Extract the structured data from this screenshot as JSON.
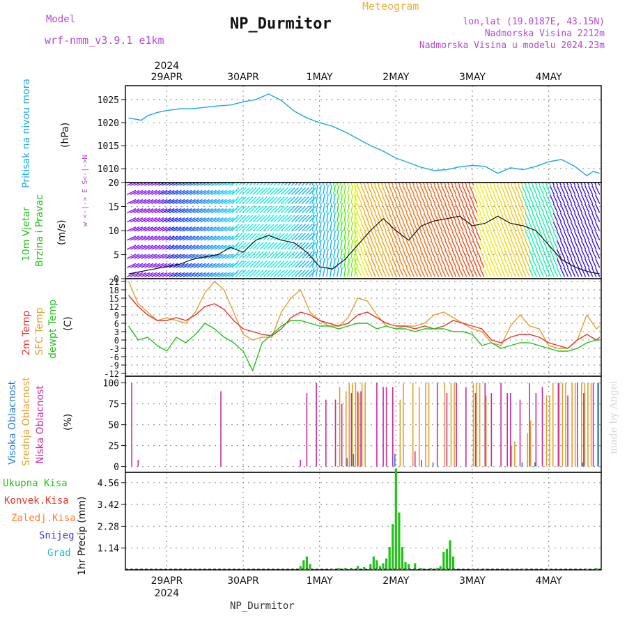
{
  "header": {
    "model_label": "Model",
    "model_name": "wrf-nmm_v3.9.1 e1km",
    "title": "NP_Durmitor",
    "meteogram_label": "Meteogram",
    "lonlat": "lon,lat (19.0187E, 43.15N)",
    "altitude": "Nadmorska Visina 2212m",
    "model_altitude": "Nadmorska Visina u modelu 2024.23m"
  },
  "footer": {
    "station": "NP_Durmitor",
    "credit": "made by Angel"
  },
  "time_axis": {
    "year": "2024",
    "day_labels": [
      "29APR",
      "30APR",
      "1MAY",
      "2MAY",
      "3MAY",
      "4MAY"
    ]
  },
  "colors": {
    "pressure": "#1aa8e6",
    "t2m": "#e8332a",
    "sfc": "#e0a030",
    "dewpt": "#22c21a",
    "cloud_high": "#2a7fd6",
    "cloud_mid": "#e0a030",
    "cloud_low": "#cc2aa0",
    "precip_total": "#22c21a",
    "precip_conv": "#e8332a",
    "precip_frz": "#ff7f2a",
    "snow": "#4040e0",
    "grad": "#20c0c0",
    "wind_label": "#22c21a",
    "purple_text": "#b04ad6",
    "header_orange": "#e8b040",
    "grid": "#9a9a9a"
  },
  "panels": {
    "pressure": {
      "labels": [
        "Pritisak na nivou mora",
        "(hPa)"
      ],
      "ticks": [
        "1010",
        "1015",
        "1020",
        "1025"
      ]
    },
    "wind": {
      "labels": [
        "10m Vjetar",
        "Brzina i Pravac",
        "(m/s)"
      ],
      "ticks": [
        "0",
        "5",
        "10",
        "15",
        "20"
      ],
      "compass": "w <-|-> E  S<-|->N"
    },
    "temp": {
      "labels": [
        "2m Temp",
        "SFC Temp",
        "dewpt Temp",
        "(C)"
      ],
      "ticks": [
        "-12",
        "-9",
        "-6",
        "-3",
        "0",
        "3",
        "6",
        "9",
        "12",
        "15",
        "18",
        "21"
      ]
    },
    "cloud": {
      "labels": [
        "Visoka Oblacnost",
        "Srednja Oblacnost",
        "Niska Oblacnost",
        "(%)"
      ],
      "ticks": [
        "0",
        "25",
        "50",
        "75",
        "100"
      ]
    },
    "precip": {
      "labels": [
        "Ukupna Kisa",
        "Konvek.Kisa",
        "Zaledj.Kisa",
        "Snijeg",
        "Grad"
      ],
      "ylabel": "1hr Precip (mm)",
      "ticks": [
        "1.14",
        "2.28",
        "3.42",
        "4.56"
      ]
    }
  },
  "chart_data": [
    {
      "type": "line",
      "title": "",
      "ylabel": "Pritisak na nivou mora (hPa)",
      "xlabel": "",
      "x_unit": "hours from 29APR 2024 00:00",
      "ylim": [
        1007,
        1028
      ],
      "series": [
        {
          "name": "Pritisak na nivou mora",
          "x": [
            -12,
            -8,
            -6,
            -3,
            0,
            4,
            8,
            12,
            16,
            20,
            24,
            28,
            32,
            36,
            40,
            44,
            48,
            52,
            56,
            60,
            64,
            68,
            72,
            76,
            80,
            84,
            88,
            92,
            96,
            100,
            104,
            108,
            112,
            116,
            120,
            124,
            128,
            132,
            134,
            136
          ],
          "values": [
            1021,
            1020.5,
            1021.5,
            1022.2,
            1022.6,
            1023,
            1023,
            1023.3,
            1023.6,
            1023.8,
            1024.5,
            1025,
            1026.2,
            1024.8,
            1022.5,
            1021,
            1020,
            1019.2,
            1018,
            1016.5,
            1015,
            1013.8,
            1012.3,
            1011.3,
            1010.3,
            1009.6,
            1009.8,
            1010.4,
            1010.7,
            1010.5,
            1009,
            1010.2,
            1009.8,
            1010.5,
            1011.5,
            1012,
            1010.6,
            1008.5,
            1009.4,
            1009
          ]
        }
      ]
    },
    {
      "type": "line",
      "title": "",
      "ylabel": "10m Vjetar Brzina i Pravac (m/s)",
      "xlabel": "",
      "x_unit": "hours from 29APR 2024 00:00",
      "ylim": [
        0,
        20
      ],
      "series": [
        {
          "name": "10m Vjetar",
          "x": [
            -12,
            -8,
            -4,
            0,
            4,
            8,
            12,
            16,
            20,
            24,
            28,
            32,
            36,
            40,
            44,
            48,
            52,
            56,
            60,
            64,
            68,
            72,
            76,
            80,
            84,
            88,
            92,
            96,
            100,
            104,
            108,
            112,
            116,
            120,
            124,
            128,
            132,
            136
          ],
          "values": [
            1,
            1.5,
            2,
            2.5,
            3,
            4,
            4.5,
            5,
            6.5,
            5.5,
            8,
            9,
            8,
            7.5,
            5.5,
            2.5,
            2,
            4,
            7,
            10,
            12.5,
            10,
            8,
            11,
            12,
            12.5,
            13,
            11,
            11.5,
            13,
            11.5,
            11,
            10,
            7,
            4,
            2.5,
            1.5,
            1
          ]
        }
      ]
    },
    {
      "type": "line",
      "title": "",
      "ylabel": "Temp (C)",
      "xlabel": "",
      "x_unit": "hours from 29APR 2024 00:00",
      "ylim": [
        -13,
        22
      ],
      "series": [
        {
          "name": "2m Temp",
          "x": [
            -12,
            -9,
            -6,
            -3,
            0,
            3,
            6,
            9,
            12,
            15,
            18,
            21,
            24,
            27,
            30,
            33,
            36,
            39,
            42,
            45,
            48,
            51,
            54,
            57,
            60,
            63,
            66,
            69,
            72,
            75,
            78,
            81,
            84,
            87,
            90,
            93,
            96,
            99,
            102,
            105,
            108,
            111,
            114,
            117,
            120,
            123,
            126,
            129,
            132,
            135,
            136
          ],
          "values": [
            16,
            12,
            9,
            7,
            7,
            8,
            7,
            9,
            12,
            13,
            11,
            7,
            4,
            3,
            2,
            1.5,
            4,
            8,
            10,
            9,
            7,
            6,
            5,
            6,
            9,
            10,
            8,
            6,
            5,
            5,
            4,
            5,
            4,
            5,
            7,
            6,
            5,
            4,
            0,
            -1,
            1,
            2,
            2,
            1,
            -1,
            -2,
            -3,
            0,
            2,
            0,
            1
          ]
        },
        {
          "name": "SFC Temp",
          "x": [
            -12,
            -9,
            -6,
            -3,
            0,
            3,
            6,
            9,
            12,
            15,
            18,
            21,
            24,
            27,
            30,
            33,
            36,
            39,
            42,
            45,
            48,
            51,
            54,
            57,
            60,
            63,
            66,
            69,
            72,
            75,
            78,
            81,
            84,
            87,
            90,
            93,
            96,
            99,
            102,
            105,
            108,
            111,
            114,
            117,
            120,
            123,
            126,
            129,
            132,
            135,
            136
          ],
          "values": [
            21,
            13,
            10,
            7,
            8,
            7,
            6,
            10,
            17,
            21,
            18,
            10,
            2,
            0,
            1,
            1,
            10,
            15,
            18,
            10,
            7,
            5,
            5,
            8,
            15,
            14,
            9,
            5,
            4,
            5,
            5,
            6,
            9,
            10,
            8,
            6,
            4,
            3,
            -1,
            -2,
            5,
            9,
            5,
            4,
            -2,
            -3,
            -3,
            0,
            9,
            4,
            5
          ]
        },
        {
          "name": "dewpt Temp",
          "x": [
            -12,
            -9,
            -6,
            -3,
            0,
            3,
            6,
            9,
            12,
            15,
            18,
            21,
            24,
            27,
            30,
            33,
            36,
            39,
            42,
            45,
            48,
            51,
            54,
            57,
            60,
            63,
            66,
            69,
            72,
            75,
            78,
            81,
            84,
            87,
            90,
            93,
            96,
            99,
            102,
            105,
            108,
            111,
            114,
            117,
            120,
            123,
            126,
            129,
            132,
            135,
            136
          ],
          "values": [
            5,
            0,
            1,
            -2,
            -4,
            1,
            -1,
            2,
            6,
            4,
            1,
            -1,
            -4,
            -11,
            -1,
            2,
            5,
            7,
            7,
            6,
            5,
            5,
            4,
            5,
            6,
            6,
            4,
            5,
            4,
            4,
            3,
            4,
            4,
            4,
            3,
            3,
            2,
            -2,
            -1,
            -3,
            -2,
            -1,
            -1,
            -2,
            -3,
            -4,
            -4,
            -3,
            -1,
            0,
            0
          ]
        }
      ]
    },
    {
      "type": "bar",
      "title": "",
      "ylabel": "Oblacnost (%)",
      "xlabel": "",
      "x_unit": "hours from 29APR 2024 00:00",
      "ylim": [
        0,
        100
      ],
      "series": [
        {
          "name": "Niska Oblacnost",
          "x": [
            -11,
            -9,
            17,
            42,
            44,
            47,
            50,
            53,
            55,
            58,
            60,
            61,
            66,
            68,
            69,
            71,
            78,
            80,
            85,
            88,
            91,
            94,
            97,
            100,
            102,
            105,
            107,
            108,
            111,
            114,
            116,
            118,
            123,
            126,
            129,
            131,
            134
          ],
          "values": [
            100,
            8,
            90,
            8,
            88,
            100,
            80,
            80,
            75,
            88,
            90,
            90,
            100,
            95,
            95,
            95,
            18,
            8,
            100,
            88,
            100,
            95,
            88,
            100,
            88,
            100,
            88,
            88,
            80,
            100,
            88,
            95,
            100,
            85,
            100,
            88,
            100
          ]
        },
        {
          "name": "Srednja Oblacnost",
          "x": [
            54,
            56,
            57,
            58,
            59,
            60,
            61,
            62,
            73,
            74,
            77,
            79,
            81,
            82,
            87,
            89,
            90,
            96,
            97,
            98,
            100,
            108,
            109,
            113,
            114,
            119,
            120,
            121,
            123,
            124,
            125,
            127,
            128,
            130,
            131,
            132,
            133,
            135
          ],
          "values": [
            95,
            90,
            100,
            100,
            100,
            88,
            100,
            100,
            80,
            100,
            100,
            95,
            100,
            100,
            100,
            100,
            100,
            100,
            100,
            100,
            85,
            25,
            30,
            40,
            55,
            85,
            85,
            100,
            100,
            100,
            100,
            100,
            100,
            100,
            100,
            100,
            100,
            100
          ]
        },
        {
          "name": "Visoka Oblacnost",
          "x": [
            56,
            58,
            71,
            83,
            111,
            115,
            130,
            135
          ],
          "values": [
            10,
            15,
            15,
            5,
            5,
            5,
            5,
            100
          ]
        }
      ]
    },
    {
      "type": "bar",
      "title": "",
      "ylabel": "1hr Precip (mm)",
      "xlabel": "",
      "x_unit": "hours from 29APR 2024 00:00",
      "ylim": [
        0,
        5.1
      ],
      "series": [
        {
          "name": "Ukupna Kisa",
          "x": [
            42,
            43,
            44,
            45,
            52,
            54,
            56,
            58,
            60,
            62,
            64,
            65,
            66,
            67,
            68,
            69,
            70,
            71,
            72,
            73,
            74,
            75,
            76,
            78,
            80,
            83,
            85,
            86,
            87,
            88,
            89,
            90,
            96,
            98,
            100,
            108,
            112,
            120,
            132,
            135
          ],
          "values": [
            0.2,
            0.5,
            0.7,
            0.3,
            0.05,
            0.1,
            0.1,
            0.1,
            0.2,
            0.15,
            0.3,
            0.7,
            0.5,
            0.2,
            0.35,
            0.6,
            1.2,
            2.4,
            5.3,
            3.0,
            1.2,
            0.4,
            0.3,
            0.35,
            0.1,
            0.1,
            0.1,
            0.2,
            0.95,
            1.1,
            1.55,
            0.7,
            0.05,
            0.05,
            0.05,
            0.05,
            0.05,
            0.05,
            0.05,
            0.1
          ]
        },
        {
          "name": "Konvek.Kisa",
          "x": [],
          "values": []
        },
        {
          "name": "Zaledj.Kisa",
          "x": [],
          "values": []
        },
        {
          "name": "Snijeg",
          "x": [],
          "values": []
        },
        {
          "name": "Grad",
          "x": [],
          "values": []
        }
      ]
    }
  ]
}
